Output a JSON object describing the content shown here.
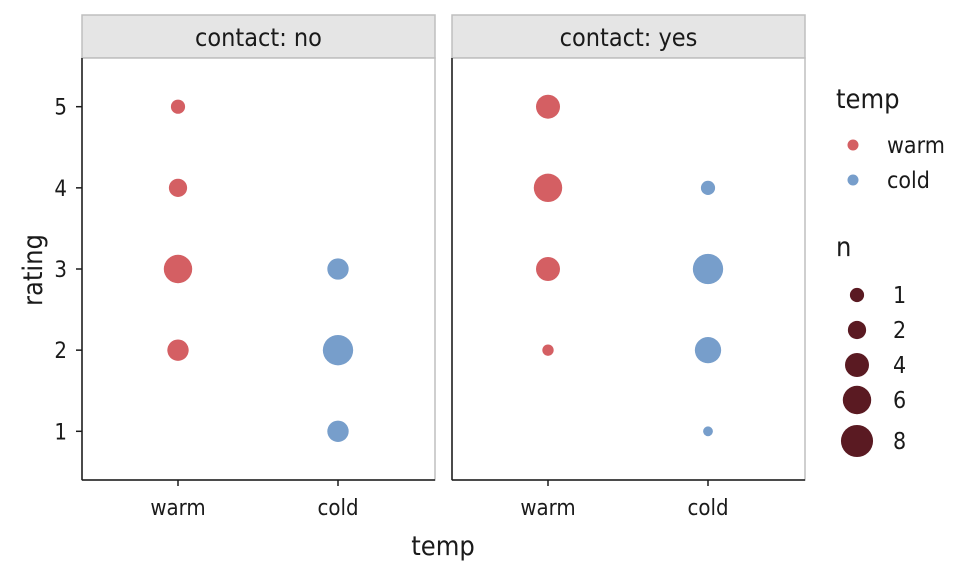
{
  "chart_data": {
    "type": "scatter",
    "xlabel": "temp",
    "ylabel": "rating",
    "x_categories": [
      "warm",
      "cold"
    ],
    "y_ticks": [
      1,
      2,
      3,
      4,
      5
    ],
    "ylim": [
      0.4,
      5.6
    ],
    "facet_var": "contact",
    "panels": [
      {
        "strip": "contact: no",
        "points": [
          {
            "temp": "warm",
            "rating": 5,
            "n": 1
          },
          {
            "temp": "warm",
            "rating": 4,
            "n": 2
          },
          {
            "temp": "warm",
            "rating": 3,
            "n": 6
          },
          {
            "temp": "warm",
            "rating": 2,
            "n": 3
          },
          {
            "temp": "cold",
            "rating": 3,
            "n": 3
          },
          {
            "temp": "cold",
            "rating": 2,
            "n": 7
          },
          {
            "temp": "cold",
            "rating": 1,
            "n": 3
          }
        ]
      },
      {
        "strip": "contact: yes",
        "points": [
          {
            "temp": "warm",
            "rating": 5,
            "n": 4
          },
          {
            "temp": "warm",
            "rating": 4,
            "n": 6
          },
          {
            "temp": "warm",
            "rating": 3,
            "n": 4
          },
          {
            "temp": "warm",
            "rating": 2,
            "n": 0.5
          },
          {
            "temp": "cold",
            "rating": 4,
            "n": 1
          },
          {
            "temp": "cold",
            "rating": 3,
            "n": 7
          },
          {
            "temp": "cold",
            "rating": 2,
            "n": 5
          },
          {
            "temp": "cold",
            "rating": 1,
            "n": 0.3
          }
        ]
      }
    ],
    "color_legend": {
      "title": "temp",
      "items": [
        {
          "label": "warm",
          "color": "#d45f63"
        },
        {
          "label": "cold",
          "color": "#779ecb"
        }
      ]
    },
    "size_legend": {
      "title": "n",
      "color": "#5a1a22",
      "items": [
        {
          "label": "1",
          "value": 1
        },
        {
          "label": "2",
          "value": 2
        },
        {
          "label": "4",
          "value": 4
        },
        {
          "label": "6",
          "value": 6
        },
        {
          "label": "8",
          "value": 8
        }
      ]
    },
    "grid": false,
    "legend_position": "right"
  }
}
